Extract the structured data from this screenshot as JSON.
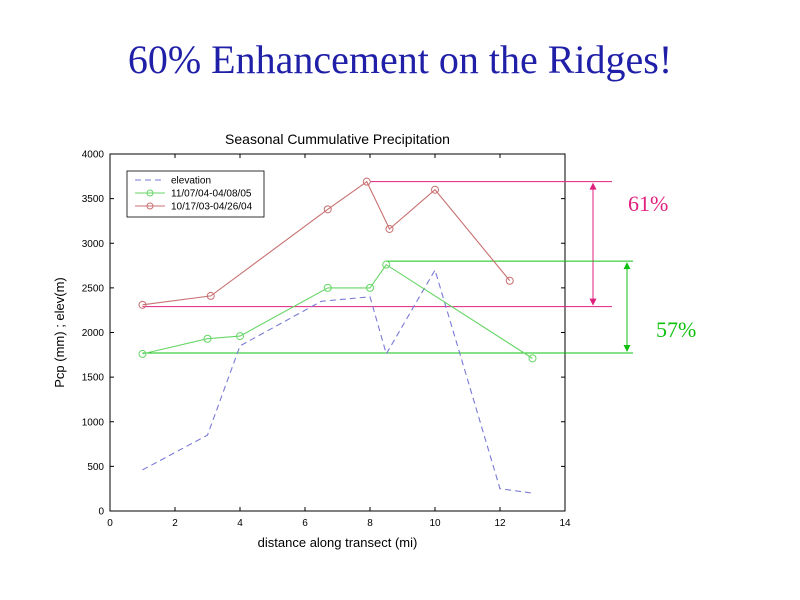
{
  "slide": {
    "title": "60% Enhancement on the Ridges!",
    "title_color": "#1f1fa8"
  },
  "chart_data": {
    "type": "line",
    "title": "Seasonal Cummulative Precipitation",
    "xlabel": "distance along transect (mi)",
    "ylabel": "Pcp (mm) ; elev(m)",
    "xlim": [
      0,
      14
    ],
    "ylim": [
      0,
      4000
    ],
    "x_ticks": [
      0,
      2,
      4,
      6,
      8,
      10,
      12,
      14
    ],
    "y_ticks": [
      0,
      500,
      1000,
      1500,
      2000,
      2500,
      3000,
      3500,
      4000
    ],
    "grid": false,
    "legend_placement": "top-left",
    "series": [
      {
        "name": "elevation",
        "color": "#7a7ad6",
        "style": "dashed",
        "marker": "none",
        "x": [
          1,
          3,
          4,
          6.5,
          8,
          8.5,
          10,
          12,
          13
        ],
        "y": [
          460,
          850,
          1850,
          2350,
          2400,
          1760,
          2700,
          250,
          200
        ]
      },
      {
        "name": "11/07/04-04/08/05",
        "color": "#66d666",
        "style": "solid",
        "marker": "circle",
        "x": [
          1,
          3,
          4,
          6.7,
          8,
          8.5,
          13
        ],
        "y": [
          1760,
          1930,
          1960,
          2500,
          2500,
          2760,
          1710
        ]
      },
      {
        "name": "10/17/03-04/26/04",
        "color": "#c87070",
        "style": "solid",
        "marker": "circle",
        "x": [
          1,
          3.1,
          6.7,
          7.9,
          8.6,
          10,
          12.3
        ],
        "y": [
          2310,
          2410,
          3380,
          3690,
          3160,
          3600,
          2580
        ]
      }
    ],
    "annotations": [
      {
        "label": "61%",
        "color": "#e0207f",
        "low": 2290,
        "high": 3690,
        "label_value": 3450
      },
      {
        "label": "57%",
        "color": "#10c010",
        "low": 1770,
        "high": 2800,
        "label_value": 2040
      }
    ]
  }
}
